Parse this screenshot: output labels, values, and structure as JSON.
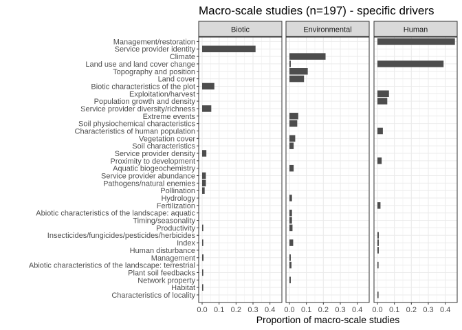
{
  "chart_data": {
    "type": "bar",
    "orientation": "horizontal",
    "title": "Macro-scale studies (n=197) - specific drivers",
    "xlabel": "Proportion of macro-scale studies",
    "ylabel": "",
    "xlim": [
      0,
      0.45
    ],
    "xticks": [
      "0.0",
      "0.1",
      "0.2",
      "0.3",
      "0.4"
    ],
    "grid": true,
    "facets": [
      "Biotic",
      "Environmental",
      "Human"
    ],
    "categories": [
      "Management/restoration",
      "Service provider identity",
      "Climate",
      "Land use and land cover change",
      "Topography and position",
      "Land cover",
      "Biotic characteristics of the plot",
      "Exploitation/harvest",
      "Population growth and density",
      "Service provider diversity/richness",
      "Extreme events",
      "Soil physiochemical characteristics",
      "Characteristics of human population",
      "Vegetation cover",
      "Soil characteristics",
      "Service provider density",
      "Proximity to development",
      "Aquatic biogeochemistry",
      "Service provider abundance",
      "Pathogens/natural enemies",
      "Pollination",
      "Hydrology",
      "Fertilization",
      "Abiotic characteristics of the landscape: aquatic",
      "Timing/seasonality",
      "Productivity",
      "Insecticides/fungicides/pesticides/herbicides",
      "Index",
      "Human disturbance",
      "Management",
      "Abiotic characteristics of the landscape: terrestrial",
      "Plant soil feedbacks",
      "Network property",
      "Habitat",
      "Characteristics of locality"
    ],
    "series": [
      {
        "facet": "Biotic",
        "values": [
          0,
          0.315,
          0,
          0,
          0,
          0,
          0.072,
          0,
          0,
          0.054,
          0,
          0,
          0,
          0,
          0,
          0.025,
          0,
          0,
          0.022,
          0.022,
          0.015,
          0,
          0,
          0,
          0,
          0.005,
          0,
          0.005,
          0,
          0.008,
          0,
          0.005,
          0,
          0.005,
          0
        ]
      },
      {
        "facet": "Environmental",
        "values": [
          0,
          0,
          0.213,
          0.008,
          0.108,
          0.086,
          0,
          0,
          0,
          0,
          0.052,
          0.046,
          0,
          0.034,
          0.025,
          0,
          0,
          0.025,
          0,
          0,
          0,
          0.015,
          0,
          0.015,
          0.015,
          0.018,
          0,
          0.022,
          0,
          0.008,
          0.012,
          0,
          0.008,
          0,
          0
        ]
      },
      {
        "facet": "Human",
        "values": [
          0.457,
          0,
          0,
          0.39,
          0,
          0,
          0,
          0.068,
          0.058,
          0,
          0,
          0,
          0.032,
          0,
          0,
          0,
          0.025,
          0,
          0,
          0,
          0,
          0,
          0.018,
          0,
          0,
          0,
          0.008,
          0.008,
          0.008,
          0,
          0.005,
          0,
          0,
          0,
          0.005
        ]
      }
    ]
  }
}
